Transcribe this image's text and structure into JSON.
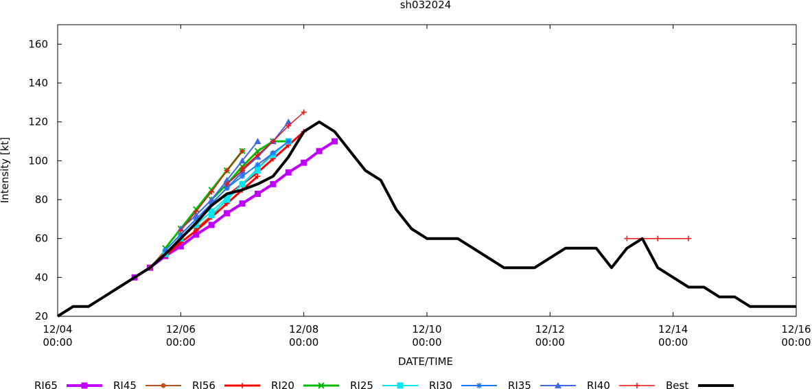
{
  "chart_data": {
    "type": "line",
    "title": "sh032024",
    "xlabel": "DATE/TIME",
    "ylabel": "Intensity [kt]",
    "x_unit": "days since 12/04 00:00",
    "xlim": [
      0,
      12
    ],
    "ylim": [
      20,
      170
    ],
    "yticks": [
      20,
      40,
      60,
      80,
      100,
      120,
      140,
      160
    ],
    "xticks": [
      {
        "x": 0,
        "date": "12/04",
        "time": "00:00"
      },
      {
        "x": 2,
        "date": "12/06",
        "time": "00:00"
      },
      {
        "x": 4,
        "date": "12/08",
        "time": "00:00"
      },
      {
        "x": 6,
        "date": "12/10",
        "time": "00:00"
      },
      {
        "x": 8,
        "date": "12/12",
        "time": "00:00"
      },
      {
        "x": 10,
        "date": "12/14",
        "time": "00:00"
      },
      {
        "x": 12,
        "date": "12/16",
        "time": "00:00"
      }
    ],
    "legend_position": "bottom",
    "series": [
      {
        "name": "RI65",
        "color": "#c000ff",
        "width": 4,
        "marker": "square",
        "lines": [
          [
            [
              1.25,
              40
            ],
            [
              1.5,
              45
            ],
            [
              1.75,
              51
            ],
            [
              2,
              56
            ],
            [
              2.25,
              62
            ],
            [
              2.5,
              67
            ],
            [
              2.75,
              73
            ],
            [
              3,
              78
            ],
            [
              3.25,
              83
            ],
            [
              3.5,
              88
            ],
            [
              3.75,
              94
            ],
            [
              4,
              99
            ],
            [
              4.25,
              105
            ],
            [
              4.5,
              110
            ]
          ]
        ]
      },
      {
        "name": "RI45",
        "color": "#c0501a",
        "width": 2,
        "marker": "circle",
        "lines": [
          [
            [
              1.5,
              45
            ],
            [
              1.75,
              54
            ],
            [
              2,
              62
            ],
            [
              2.25,
              70
            ],
            [
              2.5,
              78
            ],
            [
              2.75,
              86
            ],
            [
              3,
              94
            ]
          ],
          [
            [
              2.25,
              65
            ],
            [
              2.5,
              72
            ],
            [
              2.75,
              80
            ],
            [
              3,
              88
            ],
            [
              3.25,
              96
            ],
            [
              3.5,
              104
            ]
          ]
        ]
      },
      {
        "name": "RI56",
        "color": "#ff0000",
        "width": 3,
        "marker": "plus",
        "lines": [
          [
            [
              1.75,
              51
            ],
            [
              2,
              58
            ],
            [
              2.25,
              64
            ],
            [
              2.5,
              71
            ],
            [
              2.75,
              78
            ],
            [
              3,
              85
            ],
            [
              3.25,
              92
            ]
          ],
          [
            [
              2.75,
              82
            ],
            [
              3,
              88
            ],
            [
              3.25,
              94
            ],
            [
              3.5,
              101
            ],
            [
              3.75,
              108
            ],
            [
              4,
              115
            ]
          ]
        ]
      },
      {
        "name": "RI20",
        "color": "#00bb00",
        "width": 3,
        "marker": "x",
        "lines": [
          [
            [
              1.75,
              55
            ],
            [
              2,
              65
            ],
            [
              2.25,
              75
            ],
            [
              2.5,
              85
            ],
            [
              2.75,
              95
            ],
            [
              3,
              105
            ]
          ],
          [
            [
              2.5,
              80
            ],
            [
              2.75,
              88
            ],
            [
              3,
              97
            ],
            [
              3.25,
              105
            ],
            [
              3.5,
              110
            ],
            [
              3.75,
              110
            ]
          ]
        ]
      },
      {
        "name": "RI25",
        "color": "#00e5ee",
        "width": 2,
        "marker": "square",
        "lines": [
          [
            [
              1.75,
              52
            ],
            [
              2,
              60
            ],
            [
              2.25,
              67
            ],
            [
              2.5,
              74
            ],
            [
              2.75,
              81
            ],
            [
              3,
              88
            ],
            [
              3.25,
              95
            ]
          ],
          [
            [
              2.5,
              72
            ],
            [
              2.75,
              80
            ],
            [
              3,
              88
            ],
            [
              3.25,
              96
            ],
            [
              3.5,
              103
            ],
            [
              3.75,
              110
            ]
          ]
        ]
      },
      {
        "name": "RI30",
        "color": "#1e78ff",
        "width": 2,
        "marker": "star",
        "lines": [
          [
            [
              1.75,
              54
            ],
            [
              2,
              62
            ],
            [
              2.25,
              70
            ],
            [
              2.5,
              78
            ],
            [
              2.75,
              86
            ],
            [
              3,
              94
            ]
          ],
          [
            [
              2.75,
              86
            ],
            [
              3,
              92
            ],
            [
              3.25,
              98
            ],
            [
              3.5,
              104
            ],
            [
              3.75,
              110
            ]
          ]
        ]
      },
      {
        "name": "RI35",
        "color": "#4169e1",
        "width": 2,
        "marker": "triangle",
        "lines": [
          [
            [
              2,
              65
            ],
            [
              2.25,
              72
            ],
            [
              2.5,
              80
            ],
            [
              2.75,
              90
            ],
            [
              3,
              100
            ],
            [
              3.25,
              110
            ]
          ],
          [
            [
              2.75,
              88
            ],
            [
              3,
              95
            ],
            [
              3.25,
              102
            ],
            [
              3.5,
              110
            ],
            [
              3.75,
              120
            ]
          ]
        ]
      },
      {
        "name": "RI40",
        "color": "#ee1111",
        "width": 1.5,
        "marker": "plus",
        "lines": [
          [
            [
              2,
              64
            ],
            [
              2.25,
              74
            ],
            [
              2.5,
              84
            ],
            [
              2.75,
              95
            ],
            [
              3,
              105
            ]
          ],
          [
            [
              2.75,
              88
            ],
            [
              3,
              95
            ],
            [
              3.25,
              103
            ],
            [
              3.5,
              110
            ]
          ],
          [
            [
              3,
              96
            ],
            [
              3.25,
              103
            ],
            [
              3.5,
              110
            ],
            [
              3.75,
              118
            ],
            [
              4,
              125
            ]
          ],
          [
            [
              9.25,
              60
            ],
            [
              9.75,
              60
            ],
            [
              10.25,
              60
            ]
          ]
        ]
      },
      {
        "name": "Best",
        "color": "#000000",
        "width": 4,
        "marker": "none",
        "lines": [
          [
            [
              0,
              20
            ],
            [
              0.25,
              25
            ],
            [
              0.5,
              25
            ],
            [
              0.75,
              30
            ],
            [
              1,
              35
            ],
            [
              1.25,
              40
            ],
            [
              1.5,
              45
            ],
            [
              1.75,
              52
            ],
            [
              2,
              60
            ],
            [
              2.25,
              68
            ],
            [
              2.5,
              77
            ],
            [
              2.75,
              83
            ],
            [
              3,
              85
            ],
            [
              3.25,
              88
            ],
            [
              3.5,
              92
            ],
            [
              3.75,
              102
            ],
            [
              4,
              115
            ],
            [
              4.25,
              120
            ],
            [
              4.5,
              115
            ],
            [
              4.75,
              105
            ],
            [
              5,
              95
            ],
            [
              5.25,
              90
            ],
            [
              5.5,
              75
            ],
            [
              5.75,
              65
            ],
            [
              6,
              60
            ],
            [
              6.25,
              60
            ],
            [
              6.5,
              60
            ],
            [
              6.75,
              55
            ],
            [
              7,
              50
            ],
            [
              7.25,
              45
            ],
            [
              7.5,
              45
            ],
            [
              7.75,
              45
            ],
            [
              8,
              50
            ],
            [
              8.25,
              55
            ],
            [
              8.5,
              55
            ],
            [
              8.75,
              55
            ],
            [
              9,
              45
            ],
            [
              9.25,
              55
            ],
            [
              9.5,
              60
            ],
            [
              9.75,
              45
            ],
            [
              10,
              40
            ],
            [
              10.25,
              35
            ],
            [
              10.5,
              35
            ],
            [
              10.75,
              30
            ],
            [
              11,
              30
            ],
            [
              11.25,
              25
            ],
            [
              11.5,
              25
            ],
            [
              11.75,
              25
            ],
            [
              12,
              25
            ]
          ]
        ]
      }
    ]
  }
}
